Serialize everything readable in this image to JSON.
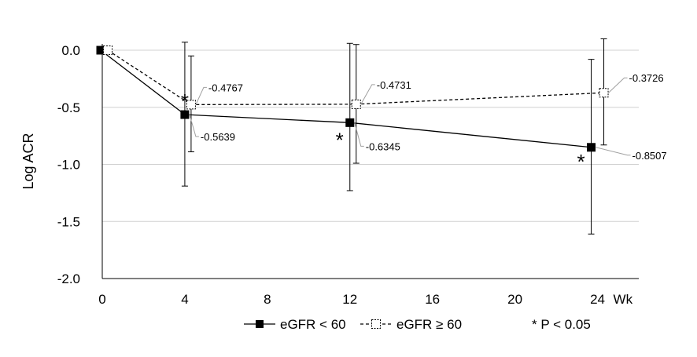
{
  "chart_data": {
    "type": "line",
    "title": "",
    "ylabel": "Log ACR",
    "xlabel": "",
    "x": [
      0,
      4,
      12,
      24
    ],
    "xlim": [
      0,
      26
    ],
    "ylim": [
      -2.0,
      0.0
    ],
    "x_ticks": [
      "0",
      "4",
      "8",
      "12",
      "16",
      "20",
      "24"
    ],
    "x_tick_values": [
      0,
      4,
      8,
      12,
      16,
      20,
      24
    ],
    "x_unit_label": "Wk",
    "y_ticks": [
      "0.0",
      "-0.5",
      "-1.0",
      "-1.5",
      "-2.0"
    ],
    "y_tick_values": [
      0.0,
      -0.5,
      -1.0,
      -1.5,
      -2.0
    ],
    "grid": "horizontal",
    "legend_position": "bottom",
    "series": [
      {
        "name": "eGFR < 60",
        "marker": "filled-square",
        "line_style": "solid",
        "color": "#000000",
        "values": [
          0.0,
          -0.5639,
          -0.6345,
          -0.8507
        ],
        "error_low": [
          null,
          -1.19,
          -1.23,
          -1.61
        ],
        "error_high": [
          null,
          0.07,
          0.06,
          -0.08
        ],
        "labels": [
          "",
          "-0.5639",
          "-0.6345",
          "-0.8507"
        ]
      },
      {
        "name": "eGFR ≥ 60",
        "marker": "open-square",
        "line_style": "dashed",
        "color": "#000000",
        "values": [
          0.0,
          -0.4767,
          -0.4731,
          -0.3726
        ],
        "error_low": [
          null,
          -0.89,
          -0.99,
          -0.83
        ],
        "error_high": [
          null,
          -0.05,
          0.05,
          0.1
        ],
        "labels": [
          "",
          "-0.4767",
          "-0.4731",
          "-0.3726"
        ]
      }
    ],
    "significance_markers": [
      {
        "x": 4,
        "y": -0.44,
        "text": "*"
      },
      {
        "x": 11.5,
        "y": -0.78,
        "text": "*"
      },
      {
        "x": 23.2,
        "y": -0.97,
        "text": "*"
      }
    ],
    "footnote": "* P < 0.05"
  }
}
